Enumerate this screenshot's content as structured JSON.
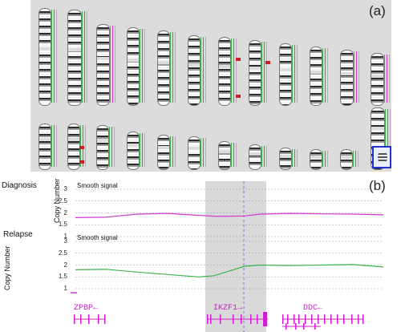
{
  "panel_a_label": "(a)",
  "panel_b_label": "(b)",
  "diagnosis": {
    "title": "Diagnosis",
    "subtitle": "Smooth signal",
    "ylabel": "Copy Number"
  },
  "relapse": {
    "title": "Relapse",
    "subtitle": "Smooth signal",
    "ylabel": "Copy Number"
  },
  "ticks": [
    "3",
    "2.5",
    "2",
    "1.5",
    "1"
  ],
  "genes": [
    "ZPBP",
    "IKZF1",
    "DDC"
  ],
  "colors": {
    "diagnosis_line": "#d23ad2",
    "relapse_line": "#3cb34a",
    "highlight": "#d9d9d9",
    "gene": "#d21bd2"
  },
  "chart_data": [
    {
      "type": "line",
      "title": "Diagnosis",
      "ylabel": "Copy Number",
      "ylim": [
        1,
        3
      ],
      "x": [
        0,
        0.1,
        0.2,
        0.3,
        0.4,
        0.45,
        0.5,
        0.55,
        0.6,
        0.7,
        0.8,
        0.9,
        1.0
      ],
      "series": [
        {
          "name": "",
          "values": [
            1.8,
            1.82,
            1.95,
            1.98,
            1.9,
            1.86,
            1.86,
            1.87,
            1.95,
            1.98,
            1.96,
            1.95,
            1.92
          ]
        }
      ]
    },
    {
      "type": "line",
      "title": "Relapse",
      "ylabel": "Copy Number",
      "ylim": [
        1,
        3
      ],
      "x": [
        0,
        0.1,
        0.2,
        0.3,
        0.4,
        0.45,
        0.5,
        0.55,
        0.6,
        0.7,
        0.8,
        0.9,
        1.0
      ],
      "series": [
        {
          "name": "",
          "values": [
            1.8,
            1.82,
            1.7,
            1.6,
            1.5,
            1.55,
            1.75,
            1.95,
            2.0,
            1.98,
            2.0,
            2.02,
            1.92
          ]
        }
      ]
    }
  ]
}
